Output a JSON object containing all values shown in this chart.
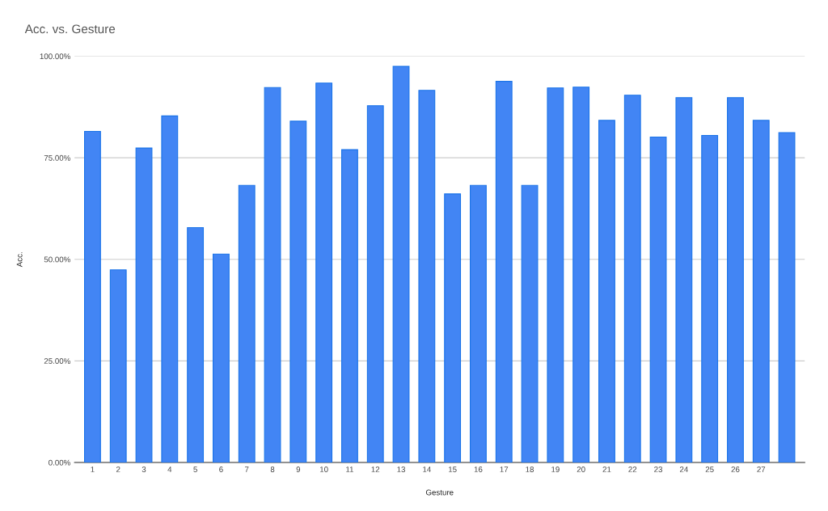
{
  "chart_data": {
    "type": "bar",
    "title": "Acc. vs. Gesture",
    "xlabel": "Gesture",
    "ylabel": "Acc.",
    "categories": [
      "1",
      "2",
      "3",
      "4",
      "5",
      "6",
      "7",
      "8",
      "9",
      "10",
      "11",
      "12",
      "13",
      "14",
      "15",
      "16",
      "17",
      "18",
      "19",
      "20",
      "21",
      "22",
      "23",
      "24",
      "25",
      "26",
      "27",
      null
    ],
    "values": [
      81.5,
      47.4,
      77.4,
      85.3,
      57.8,
      51.3,
      68.2,
      92.3,
      84.0,
      93.4,
      77.0,
      87.8,
      97.5,
      91.6,
      66.1,
      68.2,
      93.8,
      68.2,
      92.2,
      92.4,
      84.2,
      90.4,
      80.1,
      89.8,
      80.5,
      89.8,
      84.2,
      81.2
    ],
    "color": "#4285f4",
    "ylim": [
      0,
      100
    ],
    "yticks": [
      {
        "value": 0,
        "label": "0.00%"
      },
      {
        "value": 25,
        "label": "25.00%"
      },
      {
        "value": 50,
        "label": "50.00%"
      },
      {
        "value": 75,
        "label": "75.00%"
      },
      {
        "value": 100,
        "label": "100.00%"
      }
    ],
    "grid": "y",
    "legend": false
  }
}
